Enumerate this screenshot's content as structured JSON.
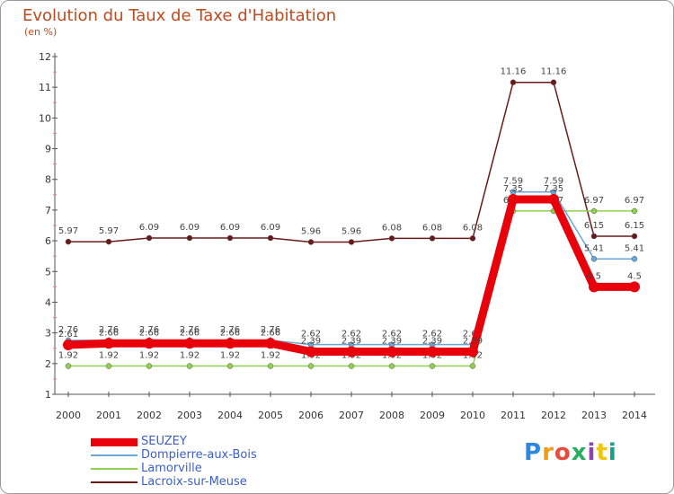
{
  "header": {
    "title": "Evolution du Taux de Taxe d'Habitation",
    "unit": "(en %)"
  },
  "logo": {
    "text": "Proxiti",
    "colors": [
      "#2e86de",
      "#f39c12",
      "#e74c3c",
      "#27ae60",
      "#8e44ad",
      "#f1c40f",
      "#16a085"
    ]
  },
  "chart_data": {
    "type": "line",
    "x": [
      2000,
      2001,
      2002,
      2003,
      2004,
      2005,
      2006,
      2007,
      2008,
      2009,
      2010,
      2011,
      2012,
      2013,
      2014
    ],
    "ylim": [
      1,
      12
    ],
    "yticks": [
      1,
      2,
      3,
      4,
      5,
      6,
      7,
      8,
      9,
      10,
      11,
      12
    ],
    "grid": false,
    "legend": "bottom-left",
    "series": [
      {
        "name": "Lacroix-sur-Meuse",
        "color": "#6b1a1a",
        "values": [
          5.97,
          5.97,
          6.09,
          6.09,
          6.09,
          6.09,
          5.96,
          5.96,
          6.08,
          6.08,
          6.08,
          11.16,
          11.16,
          6.15,
          6.15
        ],
        "labels": [
          "5.97",
          "5.97",
          "6.09",
          "6.09",
          "6.09",
          "6.09",
          "5.96",
          "5.96",
          "6.08",
          "6.08",
          "6.08",
          "11.16",
          "11.16",
          "6.15",
          "6.15"
        ]
      },
      {
        "name": "Lamorville",
        "color": "#8fd14f",
        "values": [
          1.92,
          1.92,
          1.92,
          1.92,
          1.92,
          1.92,
          1.92,
          1.92,
          1.92,
          1.92,
          1.92,
          6.97,
          6.97,
          6.97,
          6.97
        ],
        "labels": [
          "1.92",
          "1.92",
          "1.92",
          "1.92",
          "1.92",
          "1.92",
          "1.92",
          "1.92",
          "1.92",
          "1.92",
          "1.92",
          "6.97",
          "6.97",
          "6.97",
          "6.97"
        ]
      },
      {
        "name": "Dompierre-aux-Bois",
        "color": "#6aa6d8",
        "values": [
          2.76,
          2.76,
          2.76,
          2.76,
          2.76,
          2.76,
          2.62,
          2.62,
          2.62,
          2.62,
          2.62,
          7.59,
          7.59,
          5.41,
          5.41
        ],
        "labels": [
          "2.76",
          "2.76",
          "2.76",
          "2.76",
          "2.76",
          "2.76",
          "2.62",
          "2.62",
          "2.62",
          "2.62",
          "2.62",
          "7.59",
          "7.59",
          "5.41",
          "5.41"
        ]
      },
      {
        "name": "SEUZEY",
        "color": "#e8000b",
        "values": [
          2.61,
          2.66,
          2.66,
          2.66,
          2.66,
          2.66,
          2.39,
          2.39,
          2.39,
          2.39,
          2.39,
          7.35,
          7.35,
          4.5,
          4.5
        ],
        "labels": [
          "2.61",
          "2.66",
          "2.66",
          "2.66",
          "2.66",
          "2.66",
          "2.39",
          "2.39",
          "2.39",
          "2.39",
          "2.39",
          "7.35",
          "7.35",
          "4.5",
          "4.5"
        ]
      }
    ]
  }
}
